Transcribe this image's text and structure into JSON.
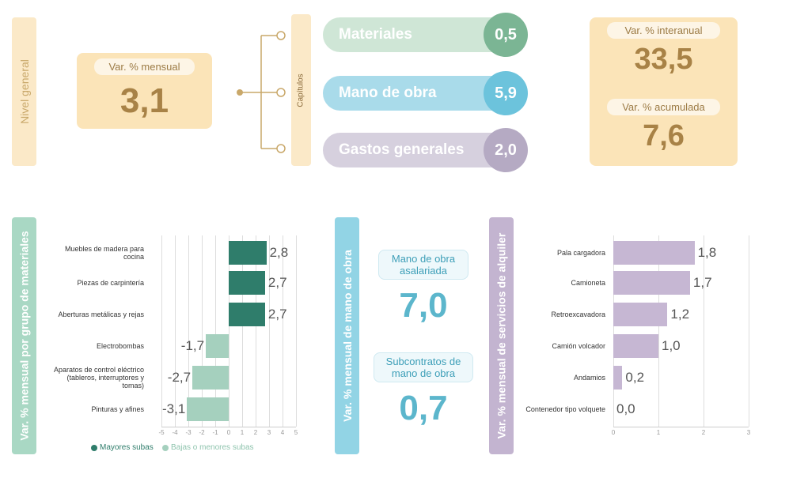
{
  "general": {
    "label": "Nivel general",
    "monthly_label": "Var. % mensual",
    "monthly_value": "3,1"
  },
  "chapters": {
    "label": "Capítulos",
    "items": [
      {
        "name": "Materiales",
        "value": "0,5"
      },
      {
        "name": "Mano de obra",
        "value": "5,9"
      },
      {
        "name": "Gastos generales",
        "value": "2,0"
      }
    ]
  },
  "annual": {
    "label": "Var. % interanual",
    "value": "33,5"
  },
  "accumulated": {
    "label": "Var. % acumulada",
    "value": "7,6"
  },
  "labor": {
    "title": "Var. % mensual de mano de obra",
    "items": [
      {
        "label": "Mano de obra asalariada",
        "value": "7,0"
      },
      {
        "label": "Subcontratos de mano de obra",
        "value": "0,7"
      }
    ]
  },
  "chart_data": [
    {
      "type": "bar",
      "orientation": "horizontal",
      "title": "Var. % mensual por grupo de materiales",
      "categories": [
        "Muebles de madera para cocina",
        "Piezas de carpintería",
        "Aberturas metálicas y rejas",
        "Electrobombas",
        "Aparatos de control eléctrico (tableros, interruptores y tomas)",
        "Pinturas y afines"
      ],
      "series": [
        {
          "name": "Mayores subas",
          "color": "#2f7d6b",
          "values": [
            2.8,
            2.7,
            2.7,
            null,
            null,
            null
          ],
          "value_labels": [
            "2,8",
            "2,7",
            "2,7",
            null,
            null,
            null
          ]
        },
        {
          "name": "Bajas o menores subas",
          "color": "#a5d0be",
          "values": [
            null,
            null,
            null,
            -1.7,
            -2.7,
            -3.1
          ],
          "value_labels": [
            null,
            null,
            null,
            "-1,7",
            "-2,7",
            "-3,1"
          ]
        }
      ],
      "xlim": [
        -5,
        5
      ],
      "xticks": [
        -5,
        -4,
        -3,
        -2,
        -1,
        0,
        1,
        2,
        3,
        4,
        5
      ],
      "grid": true,
      "legend": "bottom"
    },
    {
      "type": "bar",
      "orientation": "horizontal",
      "title": "Var. % mensual de servicios de alquiler",
      "categories": [
        "Pala cargadora",
        "Camioneta",
        "Retroexcavadora",
        "Camión volcador",
        "Andamios",
        "Contenedor tipo volquete"
      ],
      "values": [
        1.8,
        1.7,
        1.2,
        1.0,
        0.2,
        0.0
      ],
      "value_labels": [
        "1,8",
        "1,7",
        "1,2",
        "1,0",
        "0,2",
        "0,0"
      ],
      "color": "#c6b7d3",
      "xlim": [
        0,
        3
      ],
      "xticks": [
        0,
        1,
        2,
        3
      ],
      "grid": true
    }
  ]
}
